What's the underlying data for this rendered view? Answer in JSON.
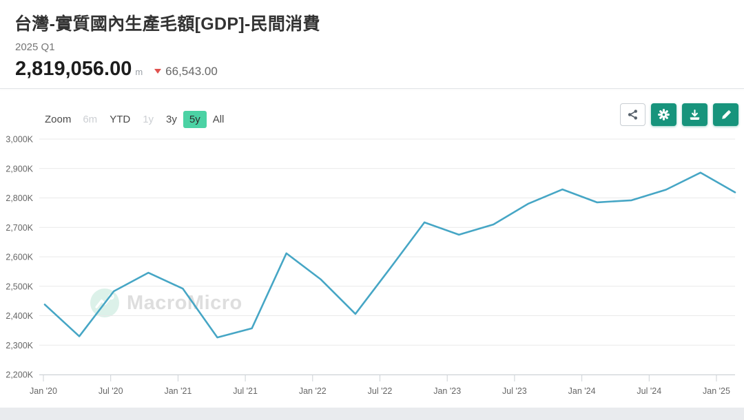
{
  "header": {
    "title": "台灣-實質國內生產毛額[GDP]-民間消費",
    "period": "2025 Q1",
    "value": "2,819,056.00",
    "unit": "m",
    "change": "66,543.00",
    "change_direction": "down",
    "change_color": "#e0524f"
  },
  "toolbar": {
    "zoom_label": "Zoom",
    "ranges": [
      {
        "label": "6m",
        "enabled": false,
        "selected": false
      },
      {
        "label": "YTD",
        "enabled": true,
        "selected": false
      },
      {
        "label": "1y",
        "enabled": false,
        "selected": false
      },
      {
        "label": "3y",
        "enabled": true,
        "selected": false
      },
      {
        "label": "5y",
        "enabled": true,
        "selected": true
      },
      {
        "label": "All",
        "enabled": true,
        "selected": false
      }
    ],
    "selected_range_bg": "#4bd2a4",
    "icon_buttons": [
      {
        "icon": "share-icon",
        "style": "light"
      },
      {
        "icon": "gear-icon",
        "style": "teal"
      },
      {
        "icon": "download-icon",
        "style": "teal"
      },
      {
        "icon": "pencil-icon",
        "style": "teal"
      }
    ],
    "teal_button_color": "#17947c"
  },
  "watermark": {
    "text": "MacroMicro"
  },
  "chart_data": {
    "type": "line",
    "title": "台灣-實質國內生產毛額[GDP]-民間消費",
    "x": [
      "2020 Q1",
      "2020 Q2",
      "2020 Q3",
      "2020 Q4",
      "2021 Q1",
      "2021 Q2",
      "2021 Q3",
      "2021 Q4",
      "2022 Q1",
      "2022 Q2",
      "2022 Q3",
      "2022 Q4",
      "2023 Q1",
      "2023 Q2",
      "2023 Q3",
      "2023 Q4",
      "2024 Q1",
      "2024 Q2",
      "2024 Q3",
      "2024 Q4",
      "2025 Q1"
    ],
    "values_k": [
      2438,
      2330,
      2483,
      2546,
      2492,
      2326,
      2357,
      2612,
      2523,
      2406,
      2560,
      2717,
      2675,
      2710,
      2780,
      2829,
      2785,
      2792,
      2828,
      2886,
      2819
    ],
    "value_unit": "K (1K = 1,000 million TWD); last point = 2,819,056.00 m",
    "ylim": [
      2200,
      3000
    ],
    "ytick_values": [
      2200,
      2300,
      2400,
      2500,
      2600,
      2700,
      2800,
      2900,
      3000
    ],
    "ytick_labels": [
      "2,200K",
      "2,300K",
      "2,400K",
      "2,500K",
      "2,600K",
      "2,700K",
      "2,800K",
      "2,900K",
      "3,000K"
    ],
    "xtick_labels": [
      "Jan '20",
      "Jul '20",
      "Jan '21",
      "Jul '21",
      "Jan '22",
      "Jul '22",
      "Jan '23",
      "Jul '23",
      "Jan '24",
      "Jul '24",
      "Jan '25"
    ],
    "grid": true,
    "legend": false,
    "line_color": "#46a6c5",
    "grid_color": "#e9e9e9",
    "axis_color": "#ccd1d6",
    "tick_label_color": "#666666"
  }
}
